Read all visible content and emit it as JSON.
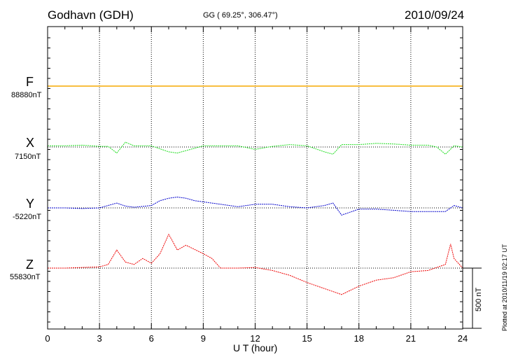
{
  "header": {
    "station": "Godhavn (GDH)",
    "coords": "GG ( 69.25°, 306.47°)",
    "date": "2010/09/24"
  },
  "footer": {
    "xlabel": "U T (hour)",
    "plotted": "Plotted at 2010/11/19 02:17 UT",
    "scale": "500 nT"
  },
  "components": [
    {
      "name": "F",
      "base": "88880nT",
      "color": "#f5a800"
    },
    {
      "name": "X",
      "base": "7150nT",
      "color": "#22dd22"
    },
    {
      "name": "Y",
      "base": "-5220nT",
      "color": "#0000cc"
    },
    {
      "name": "Z",
      "base": "55830nT",
      "color": "#ee0000"
    }
  ],
  "chart_data": {
    "type": "line",
    "title": "Godhavn (GDH)",
    "subtitle": "GG ( 69.25°, 306.47°)",
    "date": "2010/09/24",
    "xlabel": "U T (hour)",
    "xlim": [
      0,
      24
    ],
    "xticks": [
      0,
      3,
      6,
      9,
      12,
      15,
      18,
      21,
      24
    ],
    "units": "nT",
    "scale_bar_nT": 500,
    "grid": true,
    "series": [
      {
        "name": "F",
        "baseline": "88880nT",
        "color": "#f5a800",
        "x": [
          0,
          24
        ],
        "y": [
          0,
          0
        ]
      },
      {
        "name": "X",
        "baseline": "7150nT",
        "color": "#22dd22",
        "x": [
          0,
          1,
          2,
          3,
          3.5,
          4,
          4.5,
          5,
          6,
          7,
          7.5,
          8,
          9,
          10,
          11,
          12,
          13,
          14,
          15,
          16,
          16.5,
          17,
          18,
          19,
          20,
          21,
          22,
          22.5,
          23,
          23.5,
          24
        ],
        "y": [
          10,
          10,
          15,
          5,
          5,
          -50,
          40,
          10,
          10,
          -40,
          -50,
          -30,
          10,
          10,
          10,
          -20,
          5,
          20,
          10,
          -40,
          -60,
          20,
          20,
          30,
          25,
          15,
          15,
          0,
          -60,
          10,
          0
        ]
      },
      {
        "name": "Y",
        "baseline": "-5220nT",
        "color": "#0000cc",
        "x": [
          0,
          1,
          2,
          3,
          4,
          4.5,
          5,
          6,
          6.5,
          7,
          7.5,
          8,
          8.5,
          9,
          10,
          11,
          12,
          13,
          14,
          15,
          16,
          16.5,
          17,
          18,
          19,
          20,
          21,
          22,
          23,
          23.5,
          24
        ],
        "y": [
          0,
          0,
          -5,
          0,
          40,
          15,
          5,
          20,
          60,
          80,
          90,
          80,
          60,
          50,
          30,
          10,
          30,
          30,
          10,
          0,
          20,
          40,
          -60,
          -10,
          -10,
          -20,
          -30,
          -30,
          -30,
          20,
          0
        ]
      },
      {
        "name": "Z",
        "baseline": "55830nT",
        "color": "#ee0000",
        "x": [
          0,
          1,
          2,
          3,
          3.5,
          4,
          4.5,
          5,
          5.5,
          6,
          6.5,
          7,
          7.2,
          7.5,
          8,
          9,
          9.5,
          10,
          11,
          12,
          13,
          14,
          15,
          16,
          17,
          18,
          19,
          20,
          21,
          22,
          23,
          23.3,
          23.5,
          24
        ],
        "y": [
          0,
          0,
          5,
          10,
          30,
          150,
          50,
          30,
          80,
          40,
          120,
          280,
          230,
          150,
          190,
          120,
          80,
          0,
          0,
          5,
          -20,
          -60,
          -120,
          -170,
          -220,
          -150,
          -100,
          -80,
          -30,
          -20,
          30,
          200,
          80,
          0
        ]
      }
    ]
  }
}
